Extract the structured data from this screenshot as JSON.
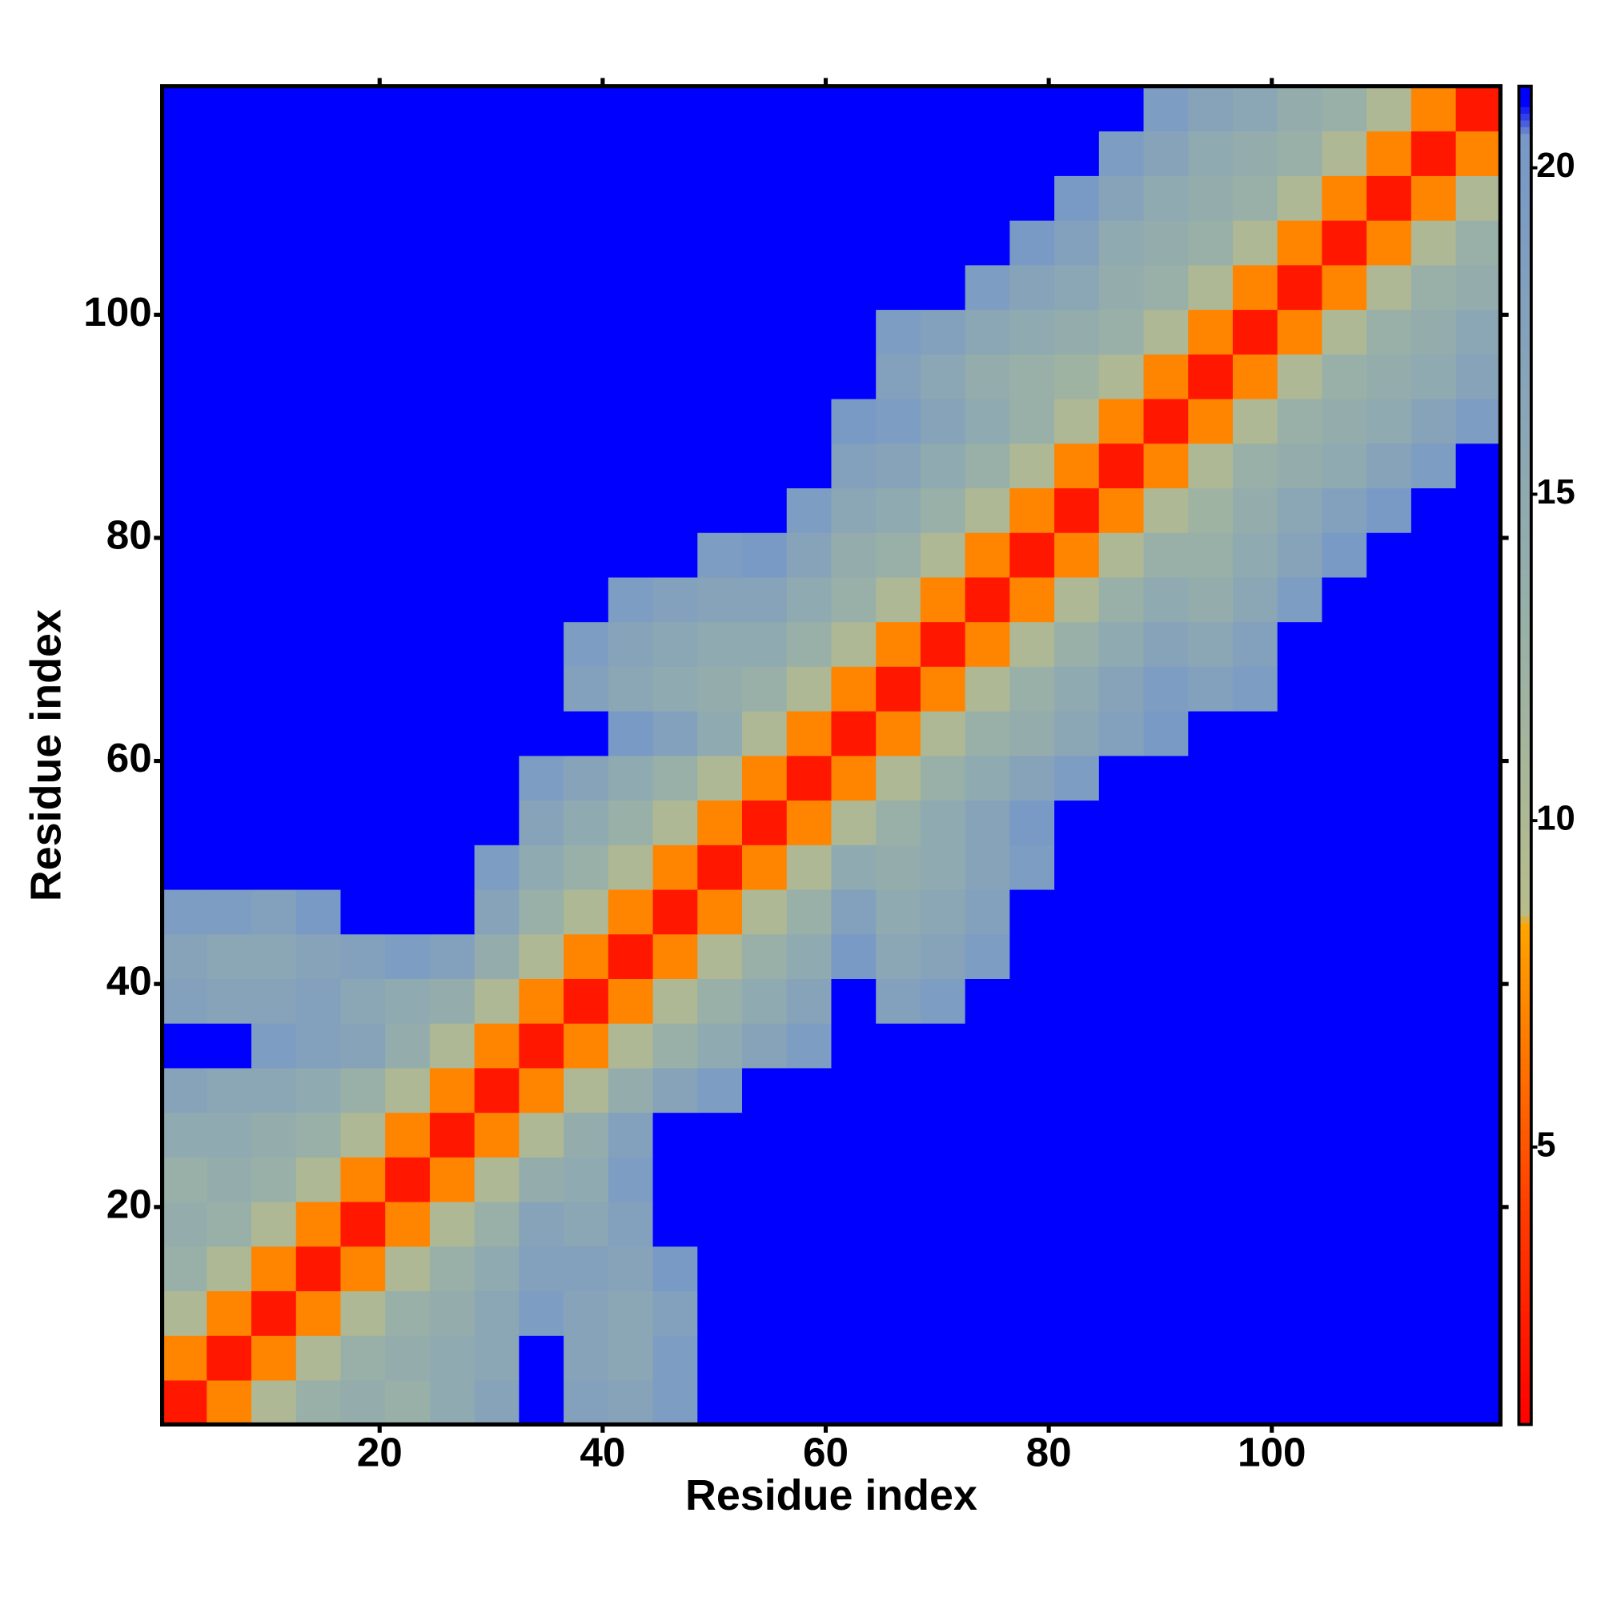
{
  "chart_data": {
    "type": "heatmap",
    "xlabel": "Residue index",
    "ylabel": "Residue index",
    "xlim": [
      0.5,
      120.5
    ],
    "ylim": [
      0.5,
      120.5
    ],
    "xticks": [
      20,
      40,
      60,
      80,
      100
    ],
    "yticks": [
      20,
      40,
      60,
      80,
      100
    ],
    "clim": [
      0.75,
      21.25
    ],
    "cticks": [
      5,
      10,
      15,
      20
    ],
    "colorscale": [
      [
        0.75,
        "#ff0000"
      ],
      [
        4,
        "#ff3c00"
      ],
      [
        8.4,
        "#ffa500"
      ],
      [
        8.6,
        "#b8bc8c"
      ],
      [
        13,
        "#98b0a8"
      ],
      [
        20.5,
        "#7898c8"
      ],
      [
        21,
        "#0000ff"
      ]
    ],
    "z": [
      [
        2,
        7,
        10,
        13,
        14,
        13,
        15,
        17,
        21,
        18,
        17,
        19,
        21,
        21,
        21,
        21,
        21,
        21,
        21,
        21,
        21,
        21,
        21,
        21,
        21,
        21,
        21,
        21,
        21,
        21
      ],
      [
        7,
        2,
        7,
        10,
        13,
        14,
        15,
        16,
        21,
        17,
        16,
        19,
        21,
        21,
        21,
        21,
        21,
        21,
        21,
        21,
        21,
        21,
        21,
        21,
        21,
        21,
        21,
        21,
        21,
        21
      ],
      [
        10,
        7,
        2,
        7,
        10,
        13,
        14,
        16,
        19,
        17,
        16,
        18,
        21,
        21,
        21,
        21,
        21,
        21,
        21,
        21,
        21,
        21,
        21,
        21,
        21,
        21,
        21,
        21,
        21,
        21
      ],
      [
        13,
        10,
        7,
        2,
        7,
        10,
        13,
        15,
        18,
        18,
        17,
        20,
        21,
        21,
        21,
        21,
        21,
        21,
        21,
        21,
        21,
        21,
        21,
        21,
        21,
        21,
        21,
        21,
        21,
        21
      ],
      [
        14,
        13,
        10,
        7,
        2,
        7,
        10,
        13,
        17,
        16,
        18,
        21,
        21,
        21,
        21,
        21,
        21,
        21,
        21,
        21,
        21,
        21,
        21,
        21,
        21,
        21,
        21,
        21,
        21,
        21
      ],
      [
        13,
        14,
        13,
        10,
        7,
        2,
        7,
        10,
        14,
        15,
        19,
        21,
        21,
        21,
        21,
        21,
        21,
        21,
        21,
        21,
        21,
        21,
        21,
        21,
        21,
        21,
        21,
        21,
        21,
        21
      ],
      [
        15,
        15,
        14,
        13,
        10,
        7,
        2,
        7,
        10,
        14,
        18,
        21,
        21,
        21,
        21,
        21,
        21,
        21,
        21,
        21,
        21,
        21,
        21,
        21,
        21,
        21,
        21,
        21,
        21,
        21
      ],
      [
        17,
        16,
        16,
        15,
        13,
        10,
        7,
        2,
        7,
        10,
        14,
        17,
        19,
        21,
        21,
        21,
        21,
        21,
        21,
        21,
        21,
        21,
        21,
        21,
        21,
        21,
        21,
        21,
        21,
        21
      ],
      [
        21,
        21,
        19,
        18,
        17,
        14,
        10,
        7,
        2,
        7,
        10,
        13,
        15,
        17,
        19,
        21,
        21,
        21,
        21,
        21,
        21,
        21,
        21,
        21,
        21,
        21,
        21,
        21,
        21,
        21
      ],
      [
        18,
        17,
        17,
        18,
        16,
        15,
        14,
        10,
        7,
        2,
        7,
        10,
        13,
        15,
        17,
        21,
        18,
        19,
        21,
        21,
        21,
        21,
        21,
        21,
        21,
        21,
        21,
        21,
        21,
        21
      ],
      [
        17,
        16,
        16,
        17,
        18,
        19,
        18,
        14,
        10,
        7,
        2,
        7,
        10,
        13,
        15,
        20,
        16,
        17,
        19,
        21,
        21,
        21,
        21,
        21,
        21,
        21,
        21,
        21,
        21,
        21
      ],
      [
        19,
        19,
        18,
        20,
        21,
        21,
        21,
        17,
        13,
        10,
        7,
        2,
        7,
        10,
        13,
        18,
        15,
        16,
        18,
        21,
        21,
        21,
        21,
        21,
        21,
        21,
        21,
        21,
        21,
        21
      ],
      [
        21,
        21,
        21,
        21,
        21,
        21,
        21,
        19,
        15,
        13,
        10,
        7,
        2,
        7,
        10,
        15,
        14,
        15,
        17,
        19,
        21,
        21,
        21,
        21,
        21,
        21,
        21,
        21,
        21,
        21
      ],
      [
        21,
        21,
        21,
        21,
        21,
        21,
        21,
        21,
        17,
        15,
        13,
        10,
        7,
        2,
        7,
        10,
        13,
        15,
        17,
        20,
        21,
        21,
        21,
        21,
        21,
        21,
        21,
        21,
        21,
        21
      ],
      [
        21,
        21,
        21,
        21,
        21,
        21,
        21,
        21,
        19,
        17,
        15,
        13,
        10,
        7,
        2,
        7,
        10,
        13,
        15,
        17,
        19,
        21,
        21,
        21,
        21,
        21,
        21,
        21,
        21,
        21
      ],
      [
        21,
        21,
        21,
        21,
        21,
        21,
        21,
        21,
        21,
        21,
        20,
        18,
        15,
        10,
        7,
        2,
        7,
        10,
        13,
        14,
        16,
        18,
        20,
        21,
        21,
        21,
        21,
        21,
        21,
        21
      ],
      [
        21,
        21,
        21,
        21,
        21,
        21,
        21,
        21,
        21,
        18,
        16,
        15,
        14,
        13,
        10,
        7,
        2,
        7,
        10,
        13,
        15,
        17,
        19,
        18,
        19,
        21,
        21,
        21,
        21,
        21
      ],
      [
        21,
        21,
        21,
        21,
        21,
        21,
        21,
        21,
        21,
        19,
        17,
        16,
        15,
        15,
        13,
        10,
        7,
        2,
        7,
        10,
        13,
        15,
        17,
        16,
        18,
        21,
        21,
        21,
        21,
        21
      ],
      [
        21,
        21,
        21,
        21,
        21,
        21,
        21,
        21,
        21,
        21,
        19,
        18,
        17,
        17,
        15,
        13,
        10,
        7,
        2,
        7,
        10,
        13,
        15,
        14,
        16,
        19,
        21,
        21,
        21,
        21
      ],
      [
        21,
        21,
        21,
        21,
        21,
        21,
        21,
        21,
        21,
        21,
        21,
        21,
        19,
        20,
        17,
        14,
        13,
        10,
        7,
        2,
        7,
        10,
        13,
        13,
        15,
        17,
        20,
        21,
        21,
        21
      ],
      [
        21,
        21,
        21,
        21,
        21,
        21,
        21,
        21,
        21,
        21,
        21,
        21,
        21,
        21,
        19,
        16,
        15,
        13,
        10,
        7,
        2,
        7,
        10,
        12,
        14,
        16,
        18,
        20,
        21,
        21
      ],
      [
        21,
        21,
        21,
        21,
        21,
        21,
        21,
        21,
        21,
        21,
        21,
        21,
        21,
        21,
        21,
        18,
        17,
        15,
        13,
        10,
        7,
        2,
        7,
        10,
        13,
        14,
        15,
        17,
        19,
        21
      ],
      [
        21,
        21,
        21,
        21,
        21,
        21,
        21,
        21,
        21,
        21,
        21,
        21,
        21,
        21,
        21,
        20,
        19,
        17,
        15,
        13,
        10,
        7,
        2,
        7,
        10,
        13,
        14,
        15,
        17,
        19
      ],
      [
        21,
        21,
        21,
        21,
        21,
        21,
        21,
        21,
        21,
        21,
        21,
        21,
        21,
        21,
        21,
        21,
        18,
        16,
        14,
        13,
        12,
        10,
        7,
        2,
        7,
        10,
        13,
        14,
        15,
        17
      ],
      [
        21,
        21,
        21,
        21,
        21,
        21,
        21,
        21,
        21,
        21,
        21,
        21,
        21,
        21,
        21,
        21,
        19,
        18,
        16,
        15,
        14,
        13,
        10,
        7,
        2,
        7,
        10,
        13,
        14,
        16
      ],
      [
        21,
        21,
        21,
        21,
        21,
        21,
        21,
        21,
        21,
        21,
        21,
        21,
        21,
        21,
        21,
        21,
        21,
        21,
        19,
        17,
        16,
        14,
        13,
        10,
        7,
        2,
        7,
        10,
        13,
        14
      ],
      [
        21,
        21,
        21,
        21,
        21,
        21,
        21,
        21,
        21,
        21,
        21,
        21,
        21,
        21,
        21,
        21,
        21,
        21,
        21,
        20,
        18,
        15,
        14,
        13,
        10,
        7,
        2,
        7,
        10,
        13
      ],
      [
        21,
        21,
        21,
        21,
        21,
        21,
        21,
        21,
        21,
        21,
        21,
        21,
        21,
        21,
        21,
        21,
        21,
        21,
        21,
        21,
        20,
        17,
        15,
        14,
        13,
        10,
        7,
        2,
        7,
        10
      ],
      [
        21,
        21,
        21,
        21,
        21,
        21,
        21,
        21,
        21,
        21,
        21,
        21,
        21,
        21,
        21,
        21,
        21,
        21,
        21,
        21,
        21,
        19,
        17,
        15,
        14,
        13,
        10,
        7,
        2,
        7
      ],
      [
        21,
        21,
        21,
        21,
        21,
        21,
        21,
        21,
        21,
        21,
        21,
        21,
        21,
        21,
        21,
        21,
        21,
        21,
        21,
        21,
        21,
        21,
        19,
        17,
        16,
        14,
        13,
        10,
        7,
        2
      ]
    ]
  }
}
